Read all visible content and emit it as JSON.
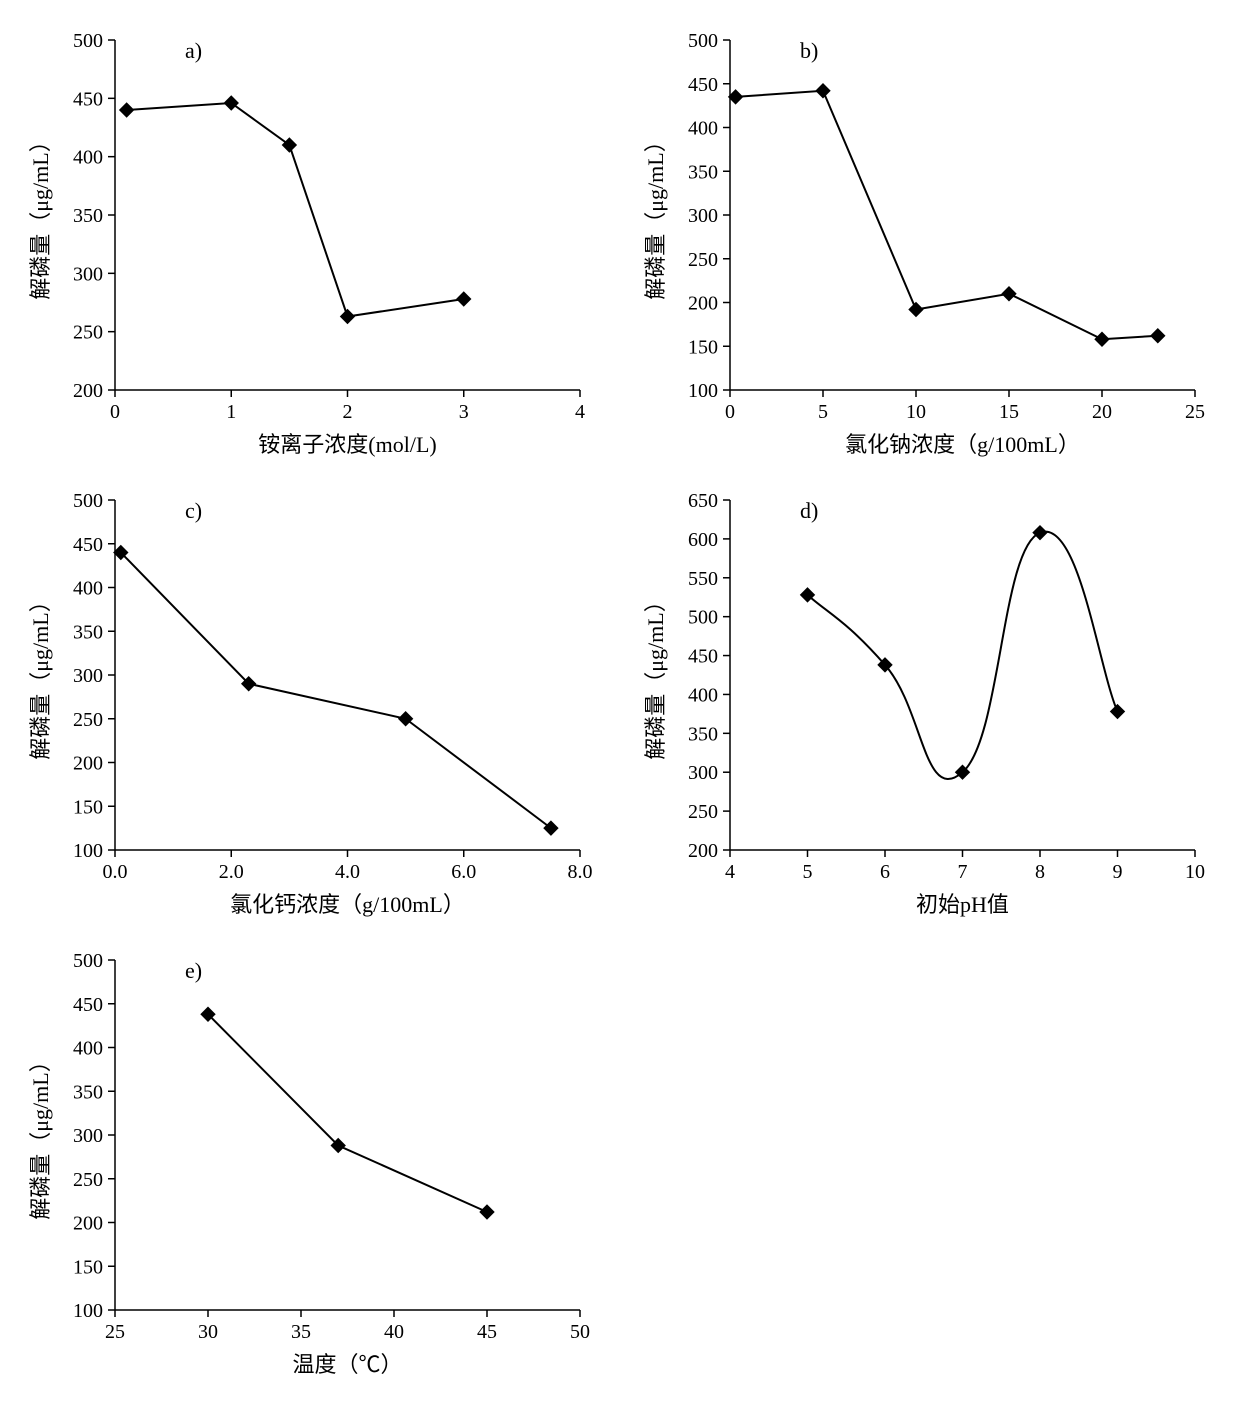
{
  "figure": {
    "background_color": "#ffffff",
    "axis_color": "#000000",
    "line_color": "#000000",
    "marker_color": "#000000",
    "font_family": "SimSun",
    "tick_fontsize": 20,
    "axis_title_fontsize": 22,
    "panel_label_fontsize": 22,
    "marker_style": "diamond",
    "marker_size": 7,
    "line_width": 2
  },
  "panels": {
    "a": {
      "label": "a)",
      "type": "line",
      "xlabel": "铵离子浓度(mol/L)",
      "ylabel": "解磷量（μg/mL）",
      "xlim": [
        0,
        4
      ],
      "ylim": [
        200,
        500
      ],
      "xticks": [
        0,
        1,
        2,
        3,
        4
      ],
      "yticks": [
        200,
        250,
        300,
        350,
        400,
        450,
        500
      ],
      "x": [
        0.1,
        1.0,
        1.5,
        2.0,
        3.0
      ],
      "y": [
        440,
        446,
        410,
        263,
        278
      ]
    },
    "b": {
      "label": "b)",
      "type": "line",
      "xlabel": "氯化钠浓度（g/100mL）",
      "ylabel": "解磷量（μg/mL）",
      "xlim": [
        0,
        25
      ],
      "ylim": [
        100,
        500
      ],
      "xticks": [
        0,
        5,
        10,
        15,
        20,
        25
      ],
      "yticks": [
        100,
        150,
        200,
        250,
        300,
        350,
        400,
        450,
        500
      ],
      "x": [
        0.3,
        5.0,
        10.0,
        15.0,
        20.0,
        23.0
      ],
      "y": [
        435,
        442,
        192,
        210,
        158,
        162
      ]
    },
    "c": {
      "label": "c)",
      "type": "line",
      "xlabel": "氯化钙浓度（g/100mL）",
      "ylabel": "解磷量（μg/mL）",
      "xlim": [
        0.0,
        8.0
      ],
      "ylim": [
        100,
        500
      ],
      "xticks": [
        0.0,
        2.0,
        4.0,
        6.0,
        8.0
      ],
      "xtick_labels": [
        "0.0",
        "2.0",
        "4.0",
        "6.0",
        "8.0"
      ],
      "yticks": [
        100,
        150,
        200,
        250,
        300,
        350,
        400,
        450,
        500
      ],
      "x": [
        0.1,
        2.3,
        5.0,
        7.5
      ],
      "y": [
        440,
        290,
        250,
        125
      ]
    },
    "d": {
      "label": "d)",
      "type": "curve",
      "xlabel": "初始pH值",
      "ylabel": "解磷量（μg/mL）",
      "xlim": [
        4,
        10
      ],
      "ylim": [
        200,
        650
      ],
      "xticks": [
        4,
        5,
        6,
        7,
        8,
        9,
        10
      ],
      "yticks": [
        200,
        250,
        300,
        350,
        400,
        450,
        500,
        550,
        600,
        650
      ],
      "x": [
        5.0,
        6.0,
        7.0,
        8.0,
        9.0
      ],
      "y": [
        528,
        438,
        300,
        608,
        378
      ]
    },
    "e": {
      "label": "e)",
      "type": "line",
      "xlabel": "温度（℃）",
      "ylabel": "解磷量（μg/mL）",
      "xlim": [
        25,
        50
      ],
      "ylim": [
        100,
        500
      ],
      "xticks": [
        25,
        30,
        35,
        40,
        45,
        50
      ],
      "yticks": [
        100,
        150,
        200,
        250,
        300,
        350,
        400,
        450,
        500
      ],
      "x": [
        30,
        37,
        45
      ],
      "y": [
        438,
        288,
        212
      ]
    }
  }
}
